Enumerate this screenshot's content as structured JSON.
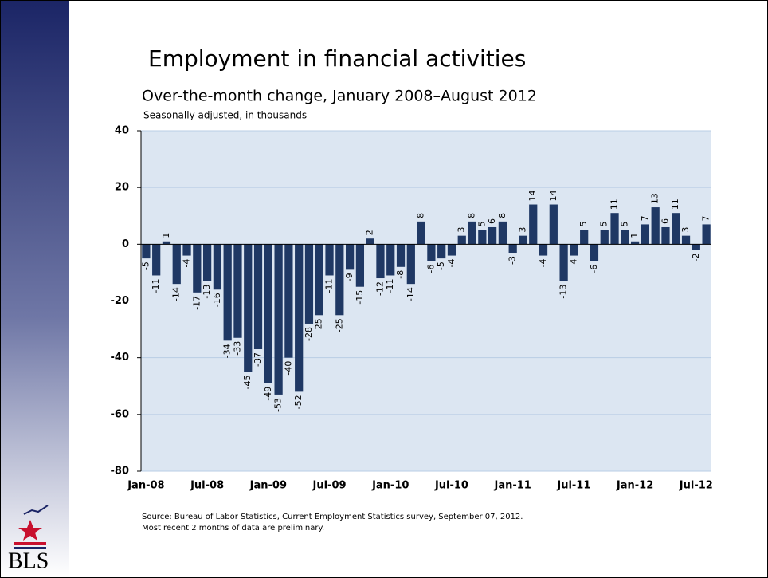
{
  "chart_data": {
    "type": "bar",
    "title": "Employment in financial activities",
    "subtitle": "Over-the-month change, January 2008–August 2012",
    "note": "Seasonally adjusted, in thousands",
    "categories": [
      "Jan-08",
      null,
      null,
      null,
      null,
      null,
      "Jul-08",
      null,
      null,
      null,
      null,
      null,
      "Jan-09",
      null,
      null,
      null,
      null,
      null,
      "Jul-09",
      null,
      null,
      null,
      null,
      null,
      "Jan-10",
      null,
      null,
      null,
      null,
      null,
      "Jul-10",
      null,
      null,
      null,
      null,
      null,
      "Jan-11",
      null,
      null,
      null,
      null,
      null,
      "Jul-11",
      null,
      null,
      null,
      null,
      null,
      "Jan-12",
      null,
      null,
      null,
      null,
      null,
      "Jul-12",
      null
    ],
    "values": [
      -5,
      -11,
      1,
      -14,
      -4,
      -17,
      -13,
      -16,
      -34,
      -33,
      -45,
      -37,
      -49,
      -53,
      -40,
      -52,
      -28,
      -25,
      -11,
      -25,
      -9,
      -15,
      2,
      -12,
      -11,
      -8,
      -14,
      8,
      -6,
      -5,
      -4,
      3,
      8,
      5,
      6,
      8,
      -3,
      3,
      14,
      -4,
      14,
      -13,
      -4,
      5,
      -6,
      5,
      11,
      5,
      1,
      7,
      13,
      6,
      11,
      3,
      -2,
      7
    ],
    "color": "#1f3864",
    "ylim": [
      -80,
      40
    ],
    "yticks": [
      -80,
      -60,
      -40,
      -20,
      0,
      20,
      40
    ],
    "grid": true,
    "source": [
      "Source: Bureau of Labor Statistics, Current Employment Statistics survey, September 07, 2012.",
      "Most recent 2 months of data are preliminary."
    ]
  },
  "logo": "BLS"
}
